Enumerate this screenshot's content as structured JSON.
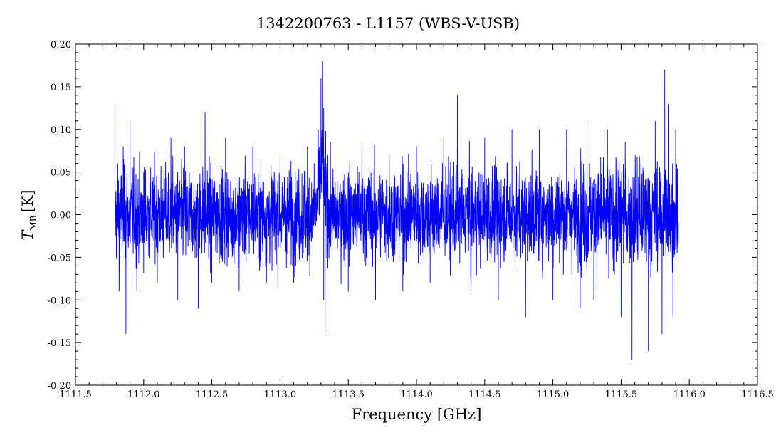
{
  "chart_data": {
    "type": "line",
    "title": "1342200763 - L1157 (WBS-V-USB)",
    "xlabel": "Frequency [GHz]",
    "ylabel": "T",
    "ylabel_subscript": "MB",
    "ylabel_unit": "[K]",
    "xlim": [
      1111.5,
      1116.5
    ],
    "ylim": [
      -0.2,
      0.2
    ],
    "x_ticks": [
      1111.5,
      1112.0,
      1112.5,
      1113.0,
      1113.5,
      1114.0,
      1114.5,
      1115.0,
      1115.5,
      1116.0,
      1116.5
    ],
    "x_tick_labels": [
      "1111.5",
      "1112.0",
      "1112.5",
      "1113.0",
      "1113.5",
      "1114.0",
      "1114.5",
      "1115.0",
      "1115.5",
      "1116.0",
      "1116.5"
    ],
    "y_ticks": [
      -0.2,
      -0.15,
      -0.1,
      -0.05,
      0.0,
      0.05,
      0.1,
      0.15,
      0.2
    ],
    "y_tick_labels": [
      "-0.20",
      "-0.15",
      "-0.10",
      "-0.05",
      "0.00",
      "0.05",
      "0.10",
      "0.15",
      "0.20"
    ],
    "grid": false,
    "line_color": "#0000ff",
    "series": [
      {
        "x_start": 1111.79,
        "x_end": 1115.92,
        "noise_rms": 0.038,
        "values": [
          [
            1111.79,
            0.13
          ],
          [
            1111.8,
            -0.05
          ],
          [
            1111.81,
            0.06
          ],
          [
            1111.82,
            -0.09
          ],
          [
            1111.85,
            0.08
          ],
          [
            1111.87,
            -0.14
          ],
          [
            1111.9,
            0.11
          ],
          [
            1111.95,
            -0.09
          ],
          [
            1112.0,
            0.05
          ],
          [
            1112.1,
            -0.08
          ],
          [
            1112.2,
            0.09
          ],
          [
            1112.25,
            -0.1
          ],
          [
            1112.3,
            0.08
          ],
          [
            1112.4,
            -0.11
          ],
          [
            1112.45,
            0.12
          ],
          [
            1112.5,
            -0.08
          ],
          [
            1112.6,
            0.09
          ],
          [
            1112.7,
            -0.09
          ],
          [
            1112.8,
            0.08
          ],
          [
            1112.9,
            -0.08
          ],
          [
            1113.0,
            0.07
          ],
          [
            1113.1,
            -0.08
          ],
          [
            1113.2,
            0.08
          ],
          [
            1113.25,
            0.06
          ],
          [
            1113.28,
            0.1
          ],
          [
            1113.3,
            0.16
          ],
          [
            1113.31,
            0.18
          ],
          [
            1113.32,
            -0.1
          ],
          [
            1113.33,
            -0.14
          ],
          [
            1113.35,
            0.07
          ],
          [
            1113.4,
            -0.02
          ],
          [
            1113.5,
            -0.09
          ],
          [
            1113.6,
            0.08
          ],
          [
            1113.7,
            -0.1
          ],
          [
            1113.8,
            0.07
          ],
          [
            1113.9,
            -0.09
          ],
          [
            1114.0,
            0.08
          ],
          [
            1114.1,
            -0.08
          ],
          [
            1114.2,
            0.09
          ],
          [
            1114.3,
            0.14
          ],
          [
            1114.4,
            -0.09
          ],
          [
            1114.5,
            0.09
          ],
          [
            1114.6,
            -0.1
          ],
          [
            1114.7,
            0.1
          ],
          [
            1114.8,
            -0.12
          ],
          [
            1114.9,
            0.1
          ],
          [
            1115.0,
            -0.1
          ],
          [
            1115.1,
            0.1
          ],
          [
            1115.2,
            -0.11
          ],
          [
            1115.25,
            0.11
          ],
          [
            1115.3,
            -0.1
          ],
          [
            1115.4,
            0.1
          ],
          [
            1115.5,
            -0.12
          ],
          [
            1115.58,
            -0.17
          ],
          [
            1115.7,
            -0.16
          ],
          [
            1115.75,
            0.11
          ],
          [
            1115.8,
            -0.14
          ],
          [
            1115.82,
            0.17
          ],
          [
            1115.85,
            0.13
          ],
          [
            1115.88,
            -0.12
          ],
          [
            1115.9,
            0.1
          ],
          [
            1115.92,
            -0.01
          ]
        ]
      }
    ]
  }
}
